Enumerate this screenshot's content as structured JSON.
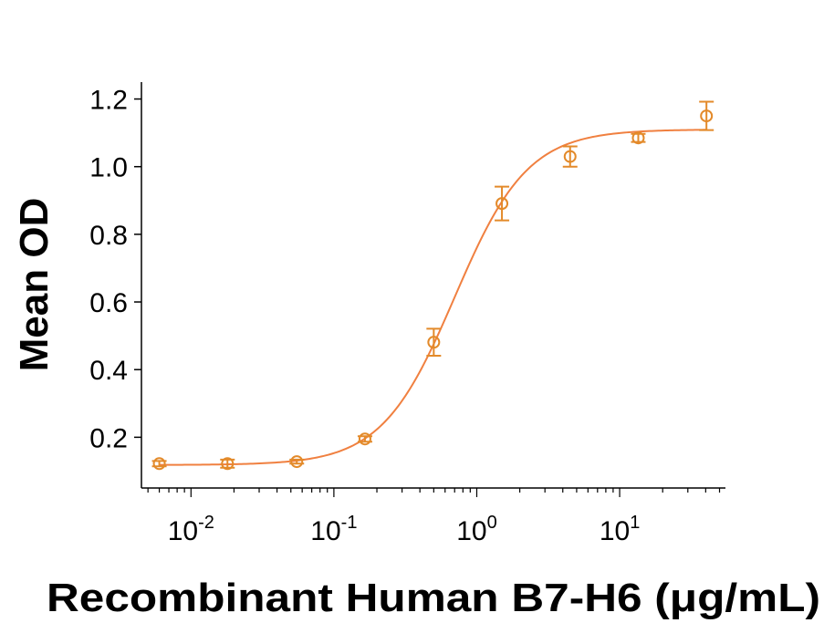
{
  "chart_data": {
    "type": "scatter",
    "xlabel": "Recombinant Human B7-H6 (μg/mL)",
    "ylabel": "Mean OD",
    "x_scale": "log",
    "xlim": [
      0.0045,
      55
    ],
    "ylim": [
      0.05,
      1.25
    ],
    "y_ticks": [
      0.2,
      0.4,
      0.6,
      0.8,
      1.0,
      1.2
    ],
    "y_tick_labels": [
      "0.2",
      "0.4",
      "0.6",
      "0.8",
      "1.0",
      "1.2"
    ],
    "x_ticks": [
      0.01,
      0.1,
      1,
      10
    ],
    "x_tick_labels": [
      {
        "base": "10",
        "exp": "-2"
      },
      {
        "base": "10",
        "exp": "-1"
      },
      {
        "base": "10",
        "exp": "0"
      },
      {
        "base": "10",
        "exp": "1"
      }
    ],
    "color": "#E38A2A",
    "curve_color": "#F08040",
    "series": [
      {
        "points": [
          {
            "x": 0.006,
            "y": 0.122,
            "err": 0.008
          },
          {
            "x": 0.018,
            "y": 0.122,
            "err": 0.012
          },
          {
            "x": 0.055,
            "y": 0.128,
            "err": 0.006
          },
          {
            "x": 0.165,
            "y": 0.195,
            "err": 0.008
          },
          {
            "x": 0.5,
            "y": 0.481,
            "err": 0.04
          },
          {
            "x": 1.5,
            "y": 0.891,
            "err": 0.05
          },
          {
            "x": 4.5,
            "y": 1.03,
            "err": 0.03
          },
          {
            "x": 13.5,
            "y": 1.085,
            "err": 0.012
          },
          {
            "x": 40.5,
            "y": 1.15,
            "err": 0.042
          }
        ],
        "fit": {
          "bottom": 0.118,
          "top": 1.11,
          "ec50": 0.7,
          "hill": 1.7
        }
      }
    ]
  }
}
